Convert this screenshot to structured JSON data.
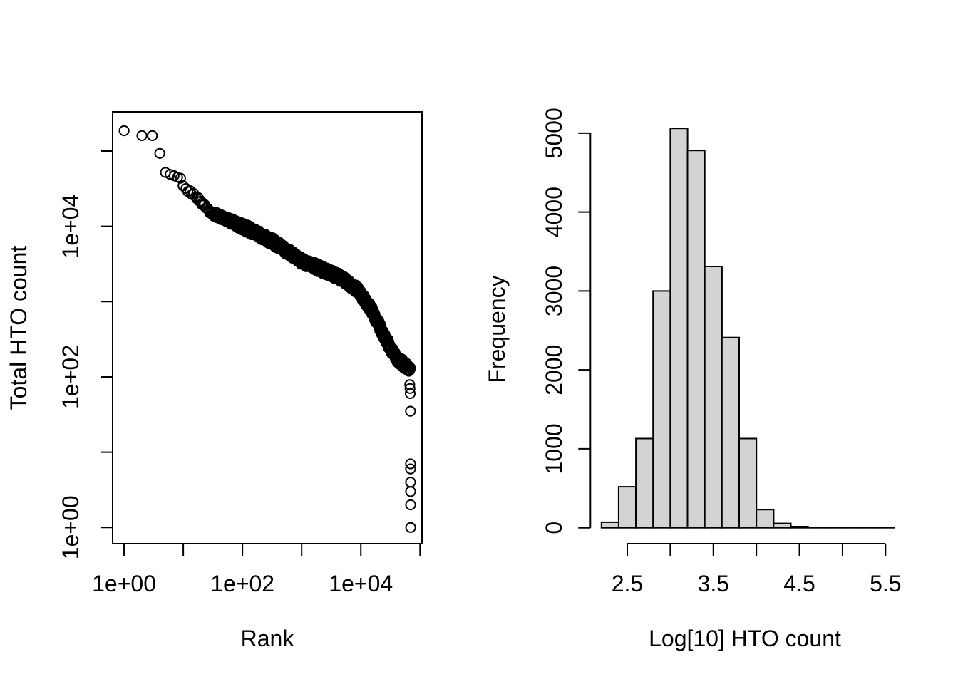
{
  "figure": {
    "background": "#ffffff",
    "foreground": "#000000",
    "description": "Two-panel R base-graphics figure: barcode rank plot and HTO count histogram"
  },
  "chart_data": [
    {
      "id": "rank-plot",
      "type": "scatter",
      "title": "",
      "xlabel": "Rank",
      "ylabel": "Total HTO count",
      "x_scale": "log10",
      "y_scale": "log10",
      "xlim_log10": [
        -0.1936,
        5.0326
      ],
      "ylim_log10": [
        -0.215,
        5.52
      ],
      "grid": false,
      "marker": {
        "shape": "open-circle",
        "radius_px": 6.6,
        "stroke": "#000000",
        "stroke_width": 2,
        "fill": "none"
      },
      "x_ticks": [
        {
          "value": 1,
          "label": "1e+00"
        },
        {
          "value": 10,
          "label": ""
        },
        {
          "value": 100,
          "label": "1e+02"
        },
        {
          "value": 1000,
          "label": ""
        },
        {
          "value": 10000,
          "label": "1e+04"
        },
        {
          "value": 100000,
          "label": ""
        }
      ],
      "y_ticks": [
        {
          "value": 1,
          "label": "1e+00"
        },
        {
          "value": 10,
          "label": ""
        },
        {
          "value": 100,
          "label": "1e+02"
        },
        {
          "value": 1000,
          "label": ""
        },
        {
          "value": 10000,
          "label": "1e+04"
        },
        {
          "value": 100000,
          "label": ""
        }
      ],
      "head_points": [
        [
          1,
          186000
        ],
        [
          2,
          160000
        ],
        [
          3,
          160000
        ],
        [
          4,
          93000
        ],
        [
          5,
          52000
        ],
        [
          6,
          49000
        ],
        [
          7,
          47000
        ],
        [
          8,
          45000
        ],
        [
          9,
          43500
        ]
      ],
      "band_knots_log10": [
        [
          0.95,
          4.57
        ],
        [
          1.05,
          4.49
        ],
        [
          1.2,
          4.41
        ],
        [
          1.35,
          4.28
        ],
        [
          1.5,
          4.17
        ],
        [
          1.7,
          4.1
        ],
        [
          2.0,
          4.0
        ],
        [
          2.5,
          3.8
        ],
        [
          3.0,
          3.54
        ],
        [
          3.45,
          3.39
        ],
        [
          3.7,
          3.3
        ],
        [
          3.95,
          3.15
        ],
        [
          4.17,
          2.9
        ],
        [
          4.35,
          2.62
        ],
        [
          4.5,
          2.38
        ],
        [
          4.62,
          2.24
        ],
        [
          4.75,
          2.15
        ],
        [
          4.839,
          2.11
        ]
      ],
      "band_integer_ranks_from": 10,
      "band_integer_ranks_to": 40,
      "band_samples": 760,
      "tail_points": [
        [
          67000,
          79
        ],
        [
          67600,
          70
        ],
        [
          68200,
          60
        ],
        [
          68700,
          35
        ],
        [
          68900,
          7
        ],
        [
          69000,
          6
        ],
        [
          69100,
          4
        ],
        [
          69200,
          3
        ],
        [
          69300,
          2
        ],
        [
          69400,
          1
        ]
      ]
    },
    {
      "id": "hto-histogram",
      "type": "histogram",
      "title": "",
      "xlabel": "Log[10] HTO count",
      "ylabel": "Frequency",
      "bin_start": 2.2,
      "bin_width": 0.2,
      "counts": [
        70,
        520,
        1130,
        3000,
        5060,
        4780,
        3310,
        2410,
        1130,
        230,
        55,
        15,
        6,
        4,
        3,
        2,
        5
      ],
      "bar_fill": "#d3d3d3",
      "bar_stroke": "#000000",
      "grid": false,
      "x_ticks": [
        {
          "value": 2.5,
          "label": "2.5"
        },
        {
          "value": 3.0,
          "label": ""
        },
        {
          "value": 3.5,
          "label": "3.5"
        },
        {
          "value": 4.0,
          "label": ""
        },
        {
          "value": 4.5,
          "label": "4.5"
        },
        {
          "value": 5.0,
          "label": ""
        },
        {
          "value": 5.5,
          "label": "5.5"
        }
      ],
      "y_ticks": [
        {
          "value": 0,
          "label": "0"
        },
        {
          "value": 1000,
          "label": "1000"
        },
        {
          "value": 2000,
          "label": "2000"
        },
        {
          "value": 3000,
          "label": "3000"
        },
        {
          "value": 4000,
          "label": "4000"
        },
        {
          "value": 5000,
          "label": "5000"
        }
      ]
    }
  ]
}
